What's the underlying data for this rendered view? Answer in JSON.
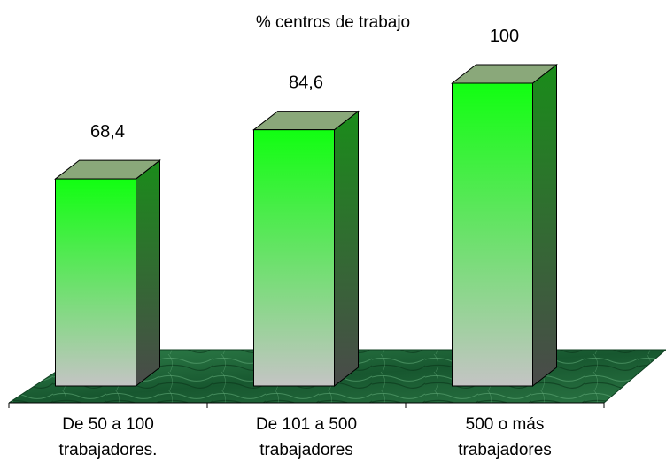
{
  "chart_data": {
    "type": "bar",
    "title": "% centros de trabajo",
    "categories": [
      [
        "De 50 a 100",
        "trabajadores."
      ],
      [
        "De 101 a 500",
        "trabajadores"
      ],
      [
        "500 o más",
        "trabajadores"
      ]
    ],
    "values": [
      68.4,
      84.6,
      100
    ],
    "value_labels": [
      "68,4",
      "84,6",
      "100"
    ],
    "ylim": [
      0,
      100
    ],
    "style": "3d-columns",
    "grid": false,
    "legend": "none",
    "colors": {
      "bar_top_gradient": "#11ff11",
      "bar_bottom_gradient": "#c4c4c4",
      "bar_side": "#1a8c1a",
      "bar_side_dark": "#4a4a4a",
      "bar_cap": "#8aa87a",
      "floor": "#1e6a3c",
      "floor_edge": "#0d3d1f",
      "outline": "#000000"
    }
  }
}
